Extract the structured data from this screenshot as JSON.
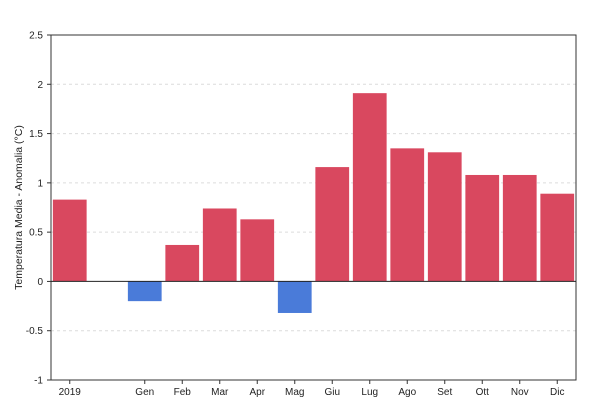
{
  "chart_data": {
    "type": "bar",
    "categories": [
      "2019",
      "",
      "Gen",
      "Feb",
      "Mar",
      "Apr",
      "Mag",
      "Giu",
      "Lug",
      "Ago",
      "Set",
      "Ott",
      "Nov",
      "Dic"
    ],
    "values": [
      0.83,
      null,
      -0.2,
      0.37,
      0.74,
      0.63,
      -0.32,
      1.16,
      1.91,
      1.35,
      1.31,
      1.08,
      1.08,
      0.89
    ],
    "title": "",
    "xlabel": "",
    "ylabel": "Temperatura Media - Anomalia (°C)",
    "ylim": [
      -1,
      2.5
    ],
    "yticks": [
      -1,
      -0.5,
      0,
      0.5,
      1,
      1.5,
      2,
      2.5
    ],
    "ytick_labels": [
      "-1",
      "-0.5",
      "0",
      "0.5",
      "1",
      "1.5",
      "2",
      "2.5"
    ],
    "grid": true,
    "colors": {
      "positive": "#d9485f",
      "negative": "#4a7bd9",
      "grid": "#dcdcdc",
      "axis": "#333333",
      "zero_line": "#222222"
    }
  }
}
